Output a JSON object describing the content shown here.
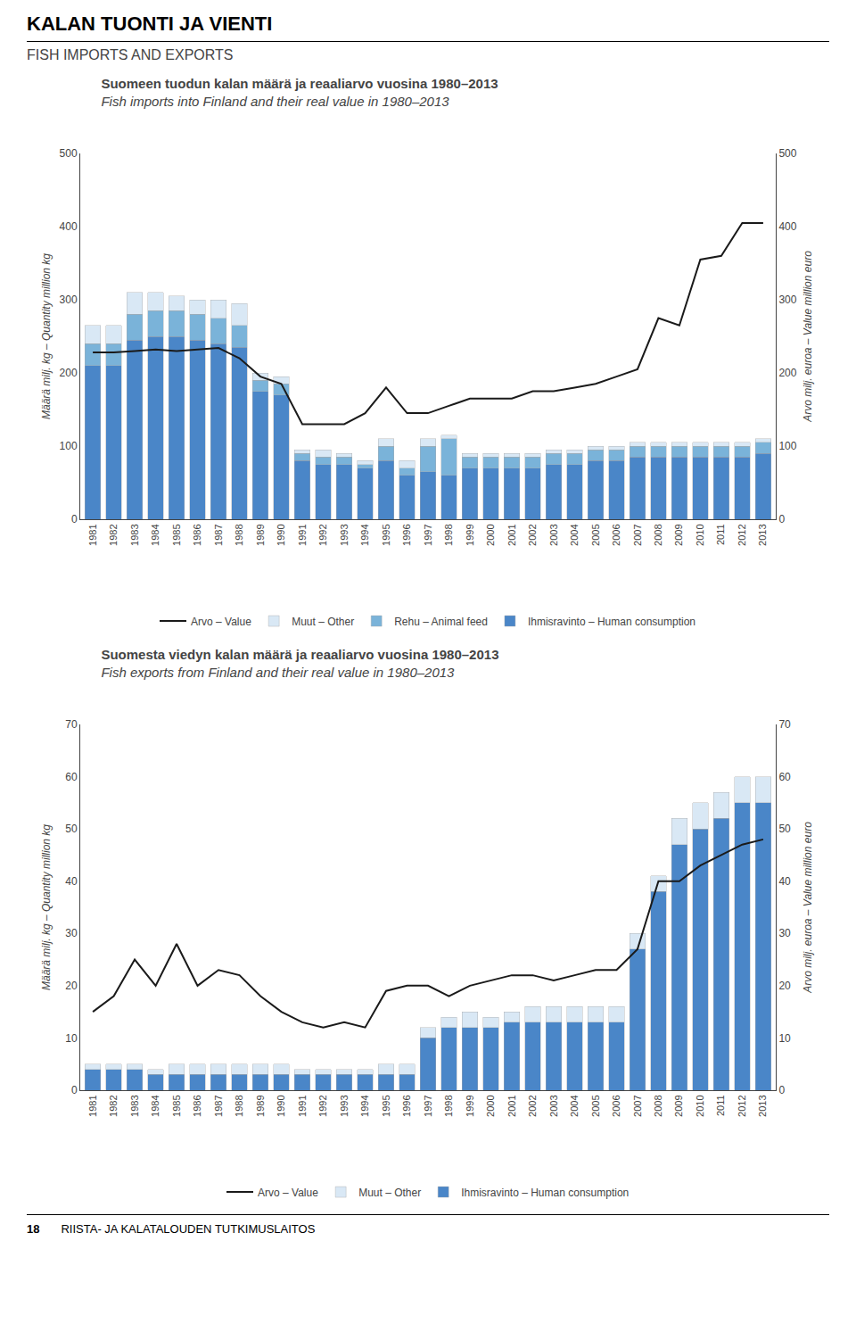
{
  "title": "KALAN TUONTI JA VIENTI",
  "subtitle": "FISH IMPORTS AND EXPORTS",
  "annotations": [
    "18",
    "RIISTA- JA KALATALOUDEN TUTKIMUSLAITOS"
  ],
  "chart_data": [
    {
      "type": "bar",
      "title": "Suomeen tuodun kalan määrä ja reaaliarvo vuosina 1980–2013",
      "subtitle": "Fish imports into Finland and their real value in 1980–2013",
      "categories": [
        "1981",
        "1982",
        "1983",
        "1984",
        "1985",
        "1986",
        "1987",
        "1988",
        "1989",
        "1990",
        "1991",
        "1992",
        "1993",
        "1994",
        "1995",
        "1996",
        "1997",
        "1998",
        "1999",
        "2000",
        "2001",
        "2002",
        "2003",
        "2004",
        "2005",
        "2006",
        "2007",
        "2008",
        "2009",
        "2010",
        "2011",
        "2012",
        "2013"
      ],
      "ylabel": "Määrä milj. kg – Quantity million kg",
      "y2label": "Arvo milj. euroa – Value million euro",
      "ylim": [
        0,
        500
      ],
      "yticks": [
        0,
        100,
        200,
        300,
        400,
        500
      ],
      "y2lim": [
        0,
        500
      ],
      "y2ticks": [
        0,
        100,
        200,
        300,
        400,
        500
      ],
      "stacked": true,
      "grid": false,
      "legend": "bottom",
      "series": [
        {
          "name": "Ihmisravinto – Human consumption",
          "type": "bar",
          "color": "#4a86c8",
          "values": [
            210,
            210,
            245,
            250,
            250,
            245,
            240,
            235,
            175,
            170,
            80,
            75,
            75,
            70,
            80,
            60,
            65,
            60,
            70,
            70,
            70,
            70,
            75,
            75,
            80,
            80,
            85,
            85,
            85,
            85,
            85,
            85,
            90
          ]
        },
        {
          "name": "Rehu – Animal feed",
          "type": "bar",
          "color": "#7ab3d9",
          "values": [
            30,
            30,
            35,
            35,
            35,
            35,
            35,
            30,
            15,
            15,
            10,
            10,
            10,
            5,
            20,
            10,
            35,
            50,
            15,
            15,
            15,
            15,
            15,
            15,
            15,
            15,
            15,
            15,
            15,
            15,
            15,
            15,
            15
          ]
        },
        {
          "name": "Muut – Other",
          "type": "bar",
          "color": "#d9e8f5",
          "values": [
            25,
            25,
            30,
            25,
            20,
            20,
            25,
            30,
            10,
            10,
            5,
            10,
            5,
            5,
            10,
            10,
            10,
            5,
            5,
            5,
            5,
            5,
            5,
            5,
            5,
            5,
            5,
            5,
            5,
            5,
            5,
            5,
            5
          ]
        },
        {
          "name": "Arvo – Value",
          "type": "line",
          "axis": "y2",
          "color": "#1a1a1a",
          "values": [
            228,
            228,
            230,
            232,
            230,
            232,
            234,
            220,
            195,
            185,
            130,
            130,
            130,
            145,
            180,
            145,
            145,
            155,
            165,
            165,
            165,
            175,
            175,
            180,
            185,
            195,
            205,
            275,
            265,
            355,
            360,
            405,
            405
          ]
        }
      ]
    },
    {
      "type": "bar",
      "title": "Suomesta viedyn kalan määrä ja reaaliarvo vuosina 1980–2013",
      "subtitle": "Fish exports from Finland and their real value in 1980–2013",
      "categories": [
        "1981",
        "1982",
        "1983",
        "1984",
        "1985",
        "1986",
        "1987",
        "1988",
        "1989",
        "1990",
        "1991",
        "1992",
        "1993",
        "1994",
        "1995",
        "1996",
        "1997",
        "1998",
        "1999",
        "2000",
        "2001",
        "2002",
        "2003",
        "2004",
        "2005",
        "2006",
        "2007",
        "2008",
        "2009",
        "2010",
        "2011",
        "2012",
        "2013"
      ],
      "ylabel": "Määrä milj. kg – Quantity million kg",
      "y2label": "Arvo milj. euroa – Value million euro",
      "ylim": [
        0,
        70
      ],
      "yticks": [
        0,
        10,
        20,
        30,
        40,
        50,
        60,
        70
      ],
      "y2lim": [
        0,
        70
      ],
      "y2ticks": [
        0,
        10,
        20,
        30,
        40,
        50,
        60,
        70
      ],
      "stacked": true,
      "grid": false,
      "legend": "bottom",
      "series": [
        {
          "name": "Ihmisravinto – Human consumption",
          "type": "bar",
          "color": "#4a86c8",
          "values": [
            4,
            4,
            4,
            3,
            3,
            3,
            3,
            3,
            3,
            3,
            3,
            3,
            3,
            3,
            3,
            3,
            10,
            12,
            12,
            12,
            13,
            13,
            13,
            13,
            13,
            13,
            27,
            38,
            47,
            50,
            52,
            55,
            55
          ]
        },
        {
          "name": "Muut – Other",
          "type": "bar",
          "color": "#d9e8f5",
          "values": [
            1,
            1,
            1,
            1,
            2,
            2,
            2,
            2,
            2,
            2,
            1,
            1,
            1,
            1,
            2,
            2,
            2,
            2,
            3,
            2,
            2,
            3,
            3,
            3,
            3,
            3,
            3,
            3,
            5,
            5,
            5,
            5,
            5
          ]
        },
        {
          "name": "Arvo – Value",
          "type": "line",
          "axis": "y2",
          "color": "#1a1a1a",
          "values": [
            15,
            18,
            25,
            20,
            28,
            20,
            23,
            22,
            18,
            15,
            13,
            12,
            13,
            12,
            19,
            20,
            20,
            18,
            20,
            21,
            22,
            22,
            21,
            22,
            23,
            23,
            27,
            40,
            40,
            43,
            45,
            47,
            48
          ]
        }
      ]
    }
  ]
}
